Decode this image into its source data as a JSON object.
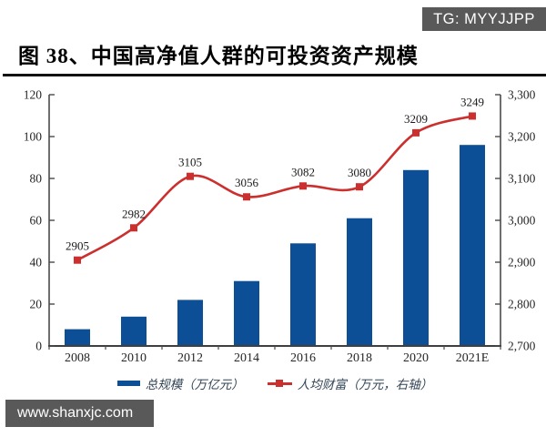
{
  "header": {
    "badge": "TG: MYYJJPP",
    "title": "图 38、中国高净值人群的可投资资产规模"
  },
  "watermark": {
    "text": "www.shanxjc.com"
  },
  "colors": {
    "bar_blue": "#0d4f96",
    "line_red": "#cb2f2e",
    "axis_gray": "#4a4a4a",
    "badge_bg": "#595959",
    "watermark_bg": "#595959",
    "title_rule": "#111111"
  },
  "chart_data": {
    "type": "bar",
    "subtype": "combo-bar-line",
    "categories": [
      "2008",
      "2010",
      "2012",
      "2014",
      "2016",
      "2018",
      "2020",
      "2021E"
    ],
    "series": [
      {
        "name": "总规模（万亿元）",
        "type": "bar",
        "axis": "left",
        "color": "#0d4f96",
        "values": [
          8,
          14,
          22,
          31,
          49,
          61,
          84,
          96
        ]
      },
      {
        "name": "人均财富（万元，右轴）",
        "type": "line",
        "axis": "right",
        "color": "#cb2f2e",
        "values": [
          2905,
          2982,
          3105,
          3056,
          3082,
          3080,
          3209,
          3249
        ],
        "point_labels": [
          "2905",
          "2982",
          "3105",
          "3056",
          "3082",
          "3080",
          "3209",
          "3249"
        ]
      }
    ],
    "left_axis": {
      "min": 0,
      "max": 120,
      "step": 20,
      "tick_labels": [
        "0",
        "20",
        "40",
        "60",
        "80",
        "100",
        "120"
      ]
    },
    "right_axis": {
      "min": 2700,
      "max": 3300,
      "step": 100,
      "tick_labels": [
        "2,700",
        "2,800",
        "2,900",
        "3,000",
        "3,100",
        "3,200",
        "3,300"
      ]
    },
    "grid": false,
    "legend_position": "bottom"
  }
}
